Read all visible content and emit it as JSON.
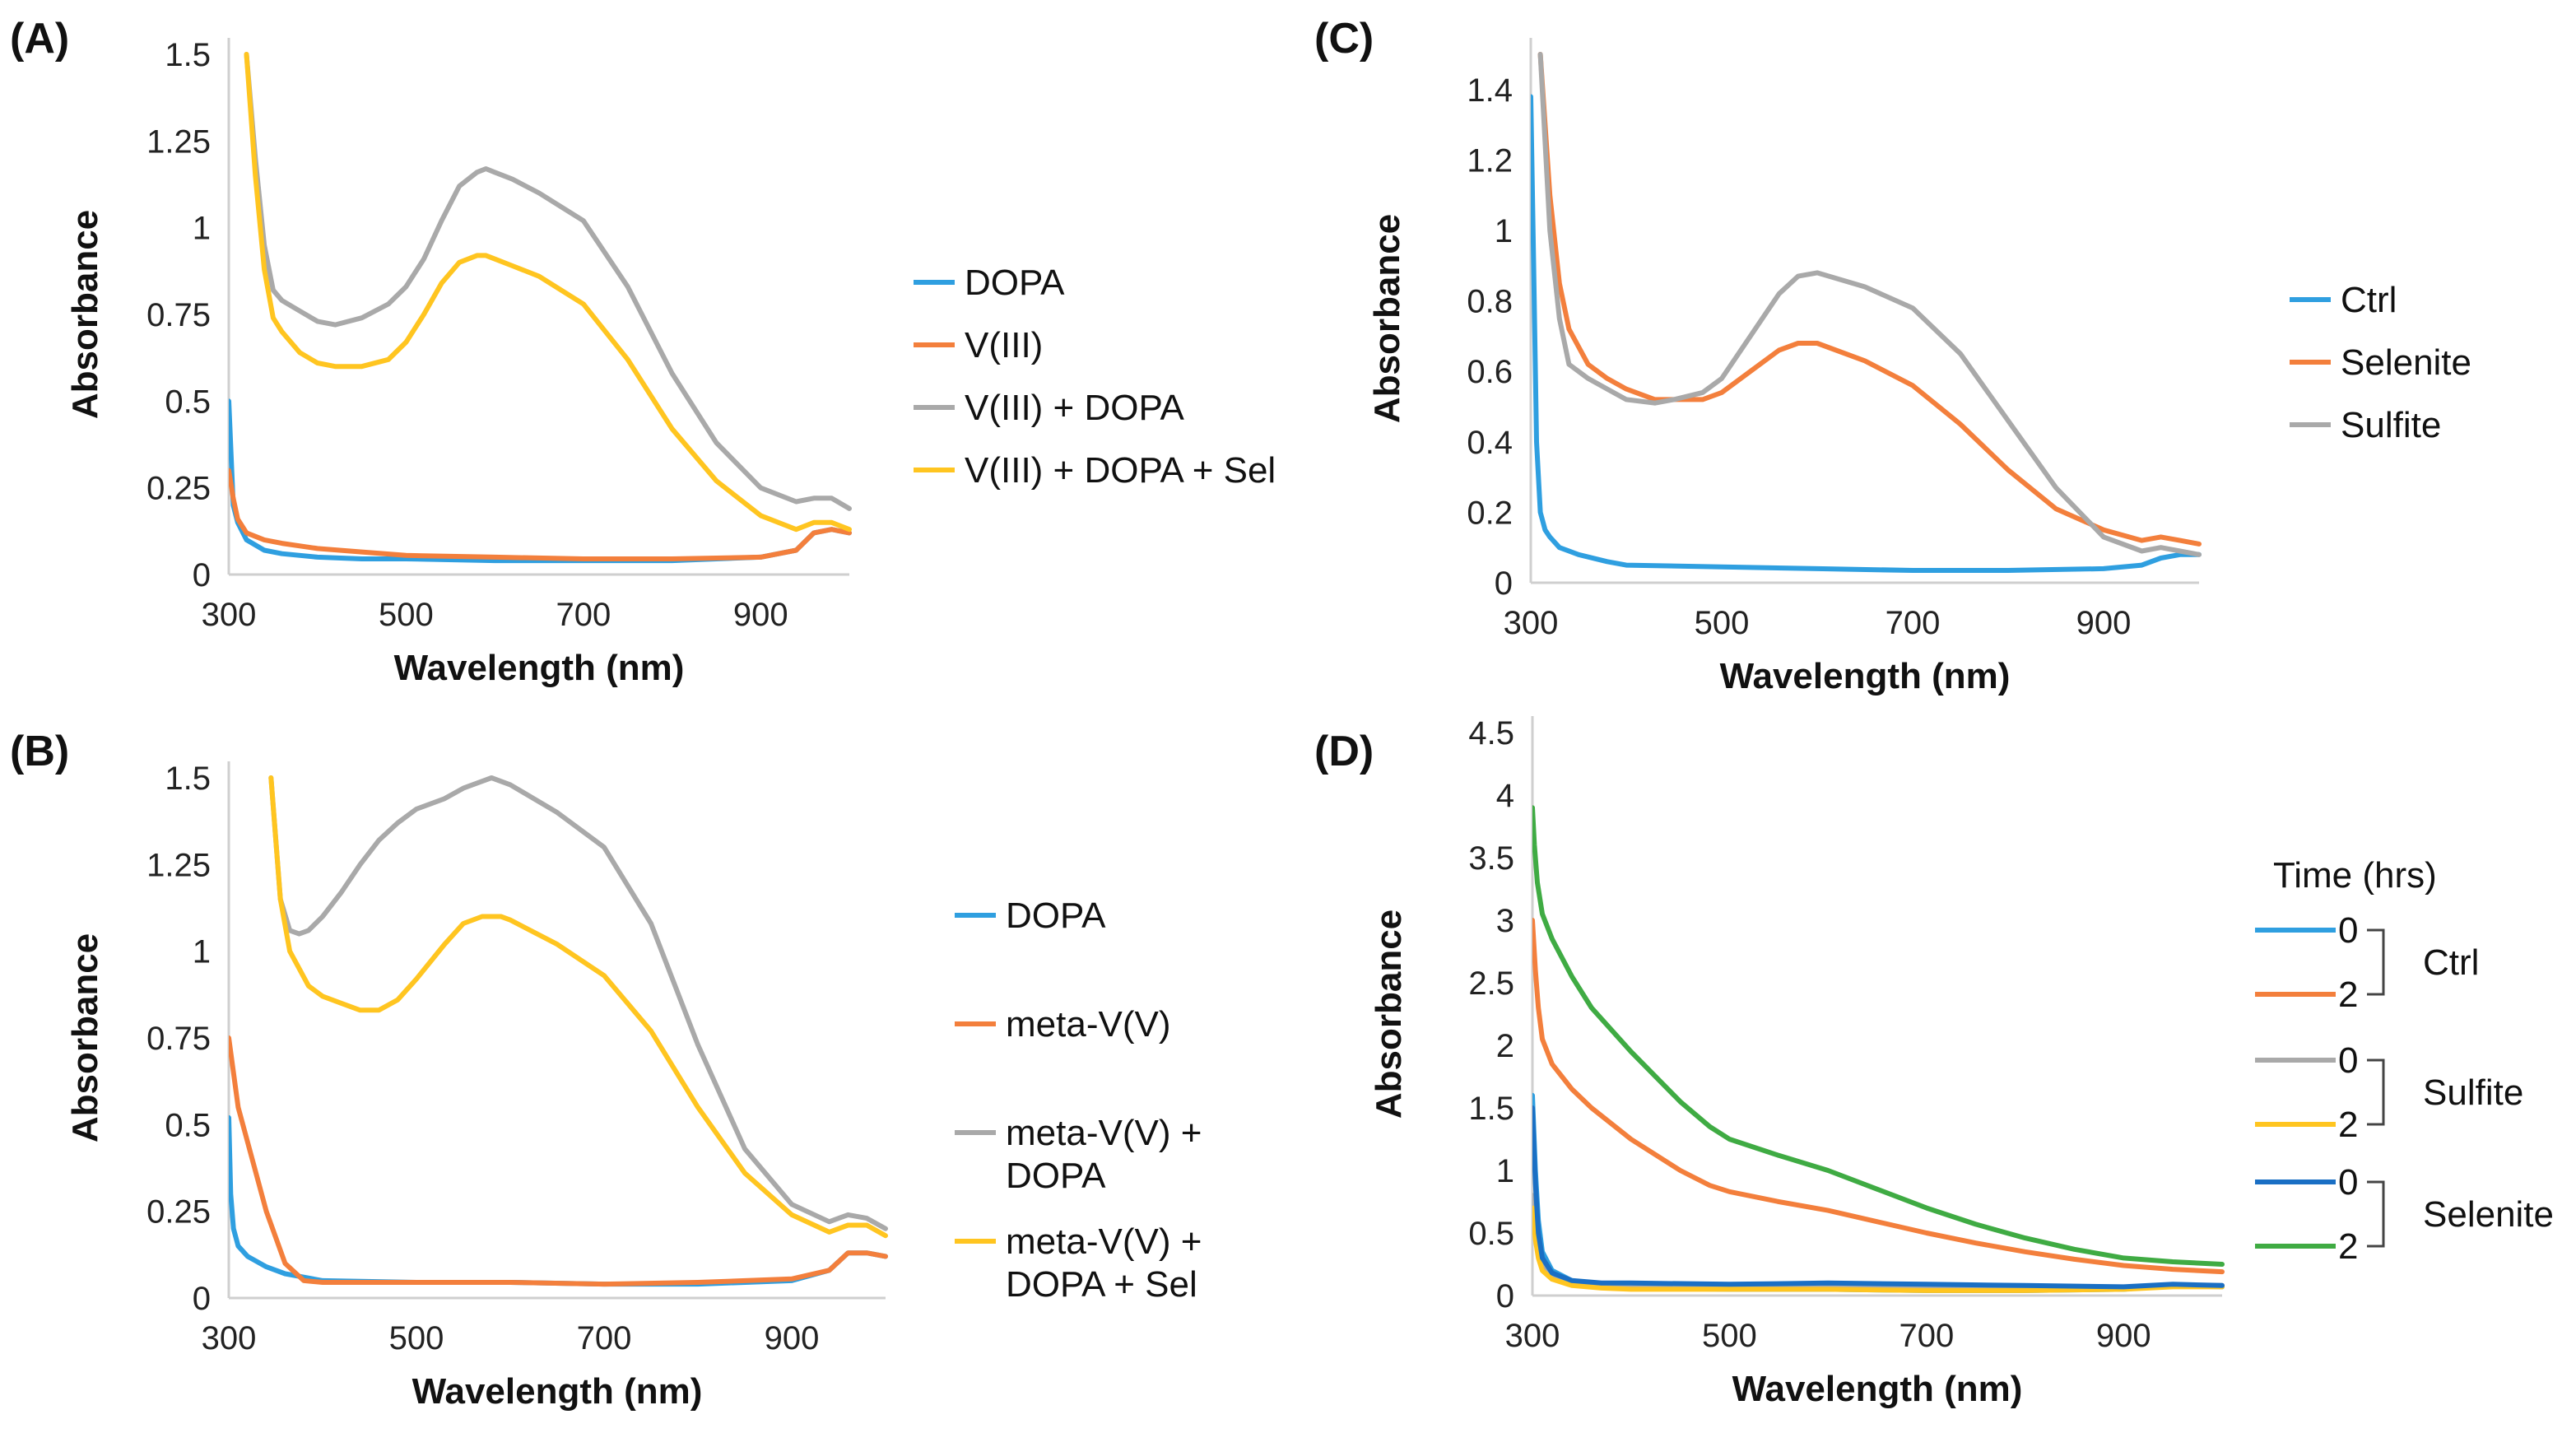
{
  "colors": {
    "blue": "#2f9fe0",
    "orange": "#f37f3c",
    "gray": "#a9a9a9",
    "yellow": "#ffc520",
    "darkblue": "#1a6fc4",
    "green": "#3fab43"
  },
  "chart_data": [
    {
      "id": "A",
      "panel_label": "(A)",
      "type": "line",
      "title": "",
      "xlabel": "Wavelength (nm)",
      "ylabel": "Absorbance",
      "xlim": [
        300,
        1000
      ],
      "ylim": [
        0,
        1.5
      ],
      "xticks": [
        "300",
        "500",
        "700",
        "900"
      ],
      "xtick_values": [
        300,
        500,
        700,
        900
      ],
      "yticks": [
        "0",
        "0.25",
        "0.5",
        "0.75",
        "1",
        "1.25",
        "1.5"
      ],
      "ytick_values": [
        0,
        0.25,
        0.5,
        0.75,
        1,
        1.25,
        1.5
      ],
      "legend": {
        "placement": "right"
      },
      "series": [
        {
          "name": "DOPA",
          "color": "#2f9fe0",
          "x": [
            300,
            305,
            310,
            320,
            340,
            360,
            400,
            450,
            500,
            600,
            700,
            800,
            900,
            940,
            960,
            980,
            1000
          ],
          "y": [
            0.5,
            0.2,
            0.15,
            0.1,
            0.07,
            0.06,
            0.05,
            0.045,
            0.045,
            0.04,
            0.04,
            0.04,
            0.05,
            0.07,
            0.12,
            0.13,
            0.12
          ]
        },
        {
          "name": "V(III)",
          "color": "#f37f3c",
          "x": [
            300,
            305,
            310,
            320,
            340,
            360,
            400,
            450,
            500,
            600,
            700,
            800,
            900,
            940,
            960,
            980,
            1000
          ],
          "y": [
            0.3,
            0.22,
            0.16,
            0.12,
            0.1,
            0.09,
            0.075,
            0.065,
            0.055,
            0.05,
            0.045,
            0.045,
            0.05,
            0.07,
            0.12,
            0.13,
            0.12
          ]
        },
        {
          "name": "V(III) + DOPA",
          "color": "#a9a9a9",
          "x": [
            320,
            330,
            340,
            350,
            360,
            380,
            400,
            420,
            450,
            480,
            500,
            520,
            540,
            560,
            580,
            590,
            600,
            620,
            650,
            700,
            750,
            800,
            850,
            900,
            940,
            960,
            980,
            1000
          ],
          "y": [
            1.5,
            1.2,
            0.95,
            0.82,
            0.79,
            0.76,
            0.73,
            0.72,
            0.74,
            0.78,
            0.83,
            0.91,
            1.02,
            1.12,
            1.16,
            1.17,
            1.16,
            1.14,
            1.1,
            1.02,
            0.83,
            0.58,
            0.38,
            0.25,
            0.21,
            0.22,
            0.22,
            0.19
          ]
        },
        {
          "name": "V(III) + DOPA + Sel",
          "color": "#ffc520",
          "x": [
            320,
            330,
            340,
            350,
            360,
            380,
            400,
            420,
            450,
            480,
            500,
            520,
            540,
            560,
            580,
            590,
            600,
            620,
            650,
            700,
            750,
            800,
            850,
            900,
            940,
            960,
            980,
            1000
          ],
          "y": [
            1.5,
            1.15,
            0.88,
            0.74,
            0.7,
            0.64,
            0.61,
            0.6,
            0.6,
            0.62,
            0.67,
            0.75,
            0.84,
            0.9,
            0.92,
            0.92,
            0.91,
            0.89,
            0.86,
            0.78,
            0.62,
            0.42,
            0.27,
            0.17,
            0.13,
            0.15,
            0.15,
            0.13
          ]
        }
      ]
    },
    {
      "id": "B",
      "panel_label": "(B)",
      "type": "line",
      "title": "",
      "xlabel": "Wavelength (nm)",
      "ylabel": "Absorbance",
      "xlim": [
        300,
        1000
      ],
      "ylim": [
        0,
        1.5
      ],
      "xticks": [
        "300",
        "500",
        "700",
        "900"
      ],
      "xtick_values": [
        300,
        500,
        700,
        900
      ],
      "yticks": [
        "0",
        "0.25",
        "0.5",
        "0.75",
        "1",
        "1.25",
        "1.5"
      ],
      "ytick_values": [
        0,
        0.25,
        0.5,
        0.75,
        1,
        1.25,
        1.5
      ],
      "legend": {
        "placement": "right"
      },
      "series": [
        {
          "name": "DOPA",
          "color": "#2f9fe0",
          "x": [
            300,
            302,
            305,
            310,
            320,
            340,
            360,
            380,
            400,
            500,
            600,
            700,
            800,
            900,
            940,
            960,
            980,
            1000
          ],
          "y": [
            0.52,
            0.3,
            0.2,
            0.15,
            0.12,
            0.09,
            0.07,
            0.06,
            0.05,
            0.045,
            0.045,
            0.04,
            0.04,
            0.05,
            0.08,
            0.13,
            0.13,
            0.12
          ]
        },
        {
          "name": "meta-V(V)",
          "color": "#f37f3c",
          "x": [
            300,
            310,
            320,
            340,
            360,
            380,
            400,
            500,
            600,
            700,
            800,
            900,
            940,
            960,
            980,
            1000
          ],
          "y": [
            0.75,
            0.55,
            0.45,
            0.25,
            0.1,
            0.05,
            0.045,
            0.045,
            0.045,
            0.04,
            0.045,
            0.055,
            0.08,
            0.13,
            0.13,
            0.12
          ]
        },
        {
          "name": "meta-V(V) + DOPA",
          "color": "#a9a9a9",
          "x": [
            345,
            355,
            365,
            375,
            385,
            400,
            420,
            440,
            460,
            480,
            500,
            530,
            550,
            570,
            580,
            600,
            650,
            700,
            750,
            800,
            850,
            900,
            940,
            960,
            980,
            1000
          ],
          "y": [
            1.5,
            1.15,
            1.06,
            1.05,
            1.06,
            1.1,
            1.17,
            1.25,
            1.32,
            1.37,
            1.41,
            1.44,
            1.47,
            1.49,
            1.5,
            1.48,
            1.4,
            1.3,
            1.08,
            0.73,
            0.43,
            0.27,
            0.22,
            0.24,
            0.23,
            0.2
          ]
        },
        {
          "name": "meta-V(V) + DOPA + Sel",
          "color": "#ffc520",
          "x": [
            345,
            355,
            365,
            375,
            385,
            400,
            420,
            440,
            460,
            480,
            500,
            530,
            550,
            570,
            580,
            590,
            600,
            650,
            700,
            750,
            800,
            850,
            900,
            940,
            960,
            980,
            1000
          ],
          "y": [
            1.5,
            1.15,
            1.0,
            0.95,
            0.9,
            0.87,
            0.85,
            0.83,
            0.83,
            0.86,
            0.92,
            1.02,
            1.08,
            1.1,
            1.1,
            1.1,
            1.09,
            1.02,
            0.93,
            0.77,
            0.55,
            0.36,
            0.24,
            0.19,
            0.21,
            0.21,
            0.18
          ]
        }
      ]
    },
    {
      "id": "C",
      "panel_label": "(C)",
      "type": "line",
      "title": "",
      "xlabel": "Wavelength (nm)",
      "ylabel": "Absorbance",
      "xlim": [
        300,
        1000
      ],
      "ylim": [
        0,
        1.5
      ],
      "xticks": [
        "300",
        "500",
        "700",
        "900"
      ],
      "xtick_values": [
        300,
        500,
        700,
        900
      ],
      "yticks": [
        "0",
        "0.2",
        "0.4",
        "0.6",
        "0.8",
        "1",
        "1.2",
        "1.4"
      ],
      "ytick_values": [
        0,
        0.2,
        0.4,
        0.6,
        0.8,
        1,
        1.2,
        1.4
      ],
      "legend": {
        "placement": "right"
      },
      "series": [
        {
          "name": "Ctrl",
          "color": "#2f9fe0",
          "x": [
            300,
            303,
            306,
            310,
            315,
            320,
            330,
            350,
            380,
            400,
            500,
            600,
            700,
            800,
            900,
            940,
            960,
            980,
            1000
          ],
          "y": [
            1.38,
            0.9,
            0.4,
            0.2,
            0.15,
            0.13,
            0.1,
            0.08,
            0.06,
            0.05,
            0.045,
            0.04,
            0.035,
            0.035,
            0.04,
            0.05,
            0.07,
            0.08,
            0.08
          ]
        },
        {
          "name": "Selenite",
          "color": "#f37f3c",
          "x": [
            310,
            320,
            330,
            340,
            360,
            380,
            400,
            430,
            450,
            480,
            500,
            530,
            560,
            580,
            600,
            650,
            700,
            750,
            800,
            850,
            900,
            940,
            960,
            980,
            1000
          ],
          "y": [
            1.5,
            1.1,
            0.85,
            0.72,
            0.62,
            0.58,
            0.55,
            0.52,
            0.52,
            0.52,
            0.54,
            0.6,
            0.66,
            0.68,
            0.68,
            0.63,
            0.56,
            0.45,
            0.32,
            0.21,
            0.15,
            0.12,
            0.13,
            0.12,
            0.11
          ]
        },
        {
          "name": "Sulfite",
          "color": "#a9a9a9",
          "x": [
            310,
            320,
            330,
            340,
            360,
            380,
            400,
            430,
            450,
            480,
            500,
            530,
            560,
            580,
            600,
            650,
            700,
            750,
            800,
            850,
            900,
            940,
            960,
            980,
            1000
          ],
          "y": [
            1.5,
            1.0,
            0.75,
            0.62,
            0.58,
            0.55,
            0.52,
            0.51,
            0.52,
            0.54,
            0.58,
            0.7,
            0.82,
            0.87,
            0.88,
            0.84,
            0.78,
            0.65,
            0.46,
            0.27,
            0.13,
            0.09,
            0.1,
            0.09,
            0.08
          ]
        }
      ]
    },
    {
      "id": "D",
      "panel_label": "(D)",
      "type": "line",
      "title": "",
      "xlabel": "Wavelength (nm)",
      "ylabel": "Absorbance",
      "xlim": [
        300,
        1000
      ],
      "ylim": [
        0,
        4.5
      ],
      "xticks": [
        "300",
        "500",
        "700",
        "900"
      ],
      "xtick_values": [
        300,
        500,
        700,
        900
      ],
      "yticks": [
        "0",
        "0.5",
        "1",
        "1.5",
        "2",
        "2.5",
        "3",
        "3.5",
        "4",
        "4.5"
      ],
      "ytick_values": [
        0,
        0.5,
        1,
        1.5,
        2,
        2.5,
        3,
        3.5,
        4,
        4.5
      ],
      "legend": {
        "placement": "right",
        "title": "Time (hrs)",
        "groups": [
          {
            "label": "Ctrl",
            "entries": [
              {
                "label": "0",
                "color": "#2f9fe0"
              },
              {
                "label": "2",
                "color": "#f37f3c"
              }
            ]
          },
          {
            "label": "Sulfite",
            "entries": [
              {
                "label": "0",
                "color": "#a9a9a9"
              },
              {
                "label": "2",
                "color": "#ffc520"
              }
            ]
          },
          {
            "label": "Selenite",
            "entries": [
              {
                "label": "0",
                "color": "#1a6fc4"
              },
              {
                "label": "2",
                "color": "#3fab43"
              }
            ]
          }
        ]
      },
      "series": [
        {
          "name": "Ctrl 0",
          "color": "#2f9fe0",
          "x": [
            300,
            303,
            306,
            310,
            320,
            340,
            370,
            400,
            500,
            600,
            700,
            800,
            900,
            950,
            1000
          ],
          "y": [
            1.6,
            1.0,
            0.6,
            0.35,
            0.2,
            0.12,
            0.08,
            0.06,
            0.05,
            0.05,
            0.04,
            0.04,
            0.05,
            0.08,
            0.07
          ]
        },
        {
          "name": "Ctrl 2",
          "color": "#f37f3c",
          "x": [
            300,
            303,
            306,
            310,
            320,
            340,
            360,
            400,
            450,
            480,
            500,
            550,
            600,
            650,
            700,
            750,
            800,
            850,
            900,
            950,
            1000
          ],
          "y": [
            3.0,
            2.6,
            2.3,
            2.05,
            1.85,
            1.65,
            1.5,
            1.25,
            1.0,
            0.88,
            0.83,
            0.75,
            0.68,
            0.59,
            0.5,
            0.42,
            0.35,
            0.29,
            0.24,
            0.21,
            0.19
          ]
        },
        {
          "name": "Sulfite 0",
          "color": "#a9a9a9",
          "x": [
            300,
            303,
            306,
            310,
            320,
            340,
            370,
            400,
            500,
            600,
            700,
            800,
            900,
            950,
            1000
          ],
          "y": [
            0.8,
            0.55,
            0.35,
            0.25,
            0.15,
            0.1,
            0.08,
            0.07,
            0.07,
            0.08,
            0.07,
            0.06,
            0.06,
            0.08,
            0.08
          ]
        },
        {
          "name": "Sulfite 2",
          "color": "#ffc520",
          "x": [
            300,
            303,
            306,
            310,
            320,
            340,
            370,
            400,
            500,
            600,
            700,
            800,
            900,
            950,
            1000
          ],
          "y": [
            0.7,
            0.45,
            0.3,
            0.2,
            0.13,
            0.08,
            0.06,
            0.05,
            0.05,
            0.05,
            0.04,
            0.04,
            0.05,
            0.07,
            0.07
          ]
        },
        {
          "name": "Selenite 0",
          "color": "#1a6fc4",
          "x": [
            300,
            303,
            306,
            310,
            320,
            340,
            370,
            400,
            500,
            600,
            700,
            800,
            900,
            950,
            1000
          ],
          "y": [
            1.5,
            0.9,
            0.5,
            0.3,
            0.18,
            0.12,
            0.1,
            0.1,
            0.09,
            0.1,
            0.09,
            0.08,
            0.07,
            0.09,
            0.08
          ]
        },
        {
          "name": "Selenite 2",
          "color": "#3fab43",
          "x": [
            300,
            302,
            305,
            310,
            320,
            340,
            360,
            400,
            450,
            480,
            500,
            550,
            600,
            650,
            700,
            750,
            800,
            850,
            900,
            950,
            1000
          ],
          "y": [
            3.9,
            3.6,
            3.3,
            3.05,
            2.85,
            2.55,
            2.3,
            1.95,
            1.55,
            1.35,
            1.25,
            1.12,
            1.0,
            0.85,
            0.7,
            0.57,
            0.46,
            0.37,
            0.3,
            0.27,
            0.25
          ]
        }
      ]
    }
  ]
}
